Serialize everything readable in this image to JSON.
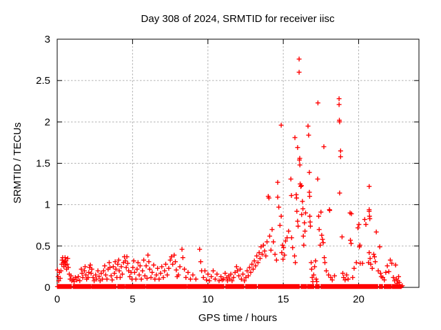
{
  "colors": {
    "marker": "#ff0000",
    "grid": "#b0b0b0",
    "frame": "#000000",
    "background": "#ffffff",
    "text": "#000000"
  },
  "chart_data": {
    "type": "scatter",
    "title": "Day 308 of 2024, SRMTID for receiver iisc",
    "xlabel": "GPS time / hours",
    "ylabel": "SRMTID / TECUs",
    "xlim": [
      0,
      24
    ],
    "ylim": [
      0,
      3
    ],
    "xticks": [
      0,
      5,
      10,
      15,
      20
    ],
    "xtick_labels": [
      "0",
      "5",
      "10",
      "15",
      "20"
    ],
    "yticks": [
      0,
      0.5,
      1,
      1.5,
      2,
      2.5,
      3
    ],
    "ytick_labels": [
      "0",
      "0.5",
      "1",
      "1.5",
      "2",
      "2.5",
      "3"
    ],
    "grid": true,
    "legend": "none",
    "marker": "plus",
    "series_name": "SRMTID",
    "baseline_band": {
      "y": 0.01,
      "t_start": 0.02,
      "t_end": 22.82,
      "step": 0.04,
      "gaps": [
        [
          0.98,
          1.04
        ],
        [
          2.24,
          2.3
        ],
        [
          3.92,
          4.0
        ],
        [
          4.48,
          4.54
        ],
        [
          5.84,
          5.9
        ],
        [
          8.6,
          8.64
        ],
        [
          11.08,
          11.14
        ],
        [
          12.4,
          12.46
        ],
        [
          13.24,
          13.3
        ],
        [
          16.08,
          16.14
        ],
        [
          16.54,
          16.6
        ],
        [
          17.02,
          17.12
        ],
        [
          17.4,
          17.46
        ],
        [
          21.28,
          21.34
        ],
        [
          21.6,
          21.66
        ],
        [
          22.14,
          22.2
        ]
      ]
    },
    "points": [
      [
        0.02,
        0.21
      ],
      [
        0.06,
        0.13
      ],
      [
        0.1,
        0.08
      ],
      [
        0.15,
        0.18
      ],
      [
        0.2,
        0.11
      ],
      [
        0.25,
        0.2
      ],
      [
        0.3,
        0.28
      ],
      [
        0.33,
        0.33
      ],
      [
        0.36,
        0.36
      ],
      [
        0.4,
        0.3
      ],
      [
        0.44,
        0.25
      ],
      [
        0.48,
        0.31
      ],
      [
        0.52,
        0.36
      ],
      [
        0.55,
        0.27
      ],
      [
        0.58,
        0.32
      ],
      [
        0.62,
        0.22
      ],
      [
        0.66,
        0.28
      ],
      [
        0.7,
        0.35
      ],
      [
        0.74,
        0.24
      ],
      [
        0.8,
        0.16
      ],
      [
        0.86,
        0.1
      ],
      [
        0.92,
        0.14
      ],
      [
        0.97,
        0.08
      ],
      [
        1.05,
        0.1
      ],
      [
        1.12,
        0.07
      ],
      [
        1.2,
        0.12
      ],
      [
        1.3,
        0.09
      ],
      [
        1.4,
        0.13
      ],
      [
        1.5,
        0.08
      ],
      [
        1.6,
        0.22
      ],
      [
        1.65,
        0.17
      ],
      [
        1.7,
        0.12
      ],
      [
        1.8,
        0.2
      ],
      [
        1.85,
        0.25
      ],
      [
        1.9,
        0.15
      ],
      [
        1.95,
        0.1
      ],
      [
        2.05,
        0.12
      ],
      [
        2.1,
        0.18
      ],
      [
        2.15,
        0.24
      ],
      [
        2.2,
        0.27
      ],
      [
        2.25,
        0.17
      ],
      [
        2.3,
        0.22
      ],
      [
        2.38,
        0.12
      ],
      [
        2.45,
        0.08
      ],
      [
        2.55,
        0.15
      ],
      [
        2.6,
        0.1
      ],
      [
        2.7,
        0.2
      ],
      [
        2.78,
        0.13
      ],
      [
        2.85,
        0.08
      ],
      [
        2.92,
        0.17
      ],
      [
        3.0,
        0.1
      ],
      [
        3.08,
        0.2
      ],
      [
        3.15,
        0.26
      ],
      [
        3.22,
        0.15
      ],
      [
        3.3,
        0.1
      ],
      [
        3.38,
        0.22
      ],
      [
        3.45,
        0.3
      ],
      [
        3.5,
        0.24
      ],
      [
        3.58,
        0.14
      ],
      [
        3.65,
        0.09
      ],
      [
        3.72,
        0.25
      ],
      [
        3.8,
        0.17
      ],
      [
        3.85,
        0.31
      ],
      [
        3.9,
        0.22
      ],
      [
        3.96,
        0.12
      ],
      [
        4.02,
        0.28
      ],
      [
        4.08,
        0.33
      ],
      [
        4.12,
        0.2
      ],
      [
        4.18,
        0.12
      ],
      [
        4.25,
        0.25
      ],
      [
        4.32,
        0.16
      ],
      [
        4.4,
        0.3
      ],
      [
        4.46,
        0.37
      ],
      [
        4.52,
        0.32
      ],
      [
        4.58,
        0.24
      ],
      [
        4.62,
        0.37
      ],
      [
        4.68,
        0.29
      ],
      [
        4.74,
        0.2
      ],
      [
        4.82,
        0.13
      ],
      [
        4.9,
        0.18
      ],
      [
        4.96,
        0.1
      ],
      [
        5.02,
        0.24
      ],
      [
        5.08,
        0.32
      ],
      [
        5.14,
        0.18
      ],
      [
        5.22,
        0.1
      ],
      [
        5.3,
        0.22
      ],
      [
        5.36,
        0.3
      ],
      [
        5.44,
        0.15
      ],
      [
        5.5,
        0.26
      ],
      [
        5.58,
        0.1
      ],
      [
        5.66,
        0.2
      ],
      [
        5.74,
        0.33
      ],
      [
        5.82,
        0.14
      ],
      [
        5.9,
        0.26
      ],
      [
        5.96,
        0.11
      ],
      [
        6.02,
        0.39
      ],
      [
        6.08,
        0.31
      ],
      [
        6.14,
        0.22
      ],
      [
        6.22,
        0.12
      ],
      [
        6.3,
        0.18
      ],
      [
        6.4,
        0.27
      ],
      [
        6.48,
        0.1
      ],
      [
        6.58,
        0.15
      ],
      [
        6.66,
        0.23
      ],
      [
        6.76,
        0.1
      ],
      [
        6.86,
        0.17
      ],
      [
        6.94,
        0.25
      ],
      [
        7.04,
        0.12
      ],
      [
        7.12,
        0.2
      ],
      [
        7.2,
        0.28
      ],
      [
        7.3,
        0.15
      ],
      [
        7.4,
        0.23
      ],
      [
        7.5,
        0.33
      ],
      [
        7.58,
        0.37
      ],
      [
        7.66,
        0.28
      ],
      [
        7.76,
        0.39
      ],
      [
        7.84,
        0.31
      ],
      [
        7.9,
        0.21
      ],
      [
        7.96,
        0.13
      ],
      [
        8.04,
        0.15
      ],
      [
        8.14,
        0.25
      ],
      [
        8.28,
        0.46
      ],
      [
        8.34,
        0.36
      ],
      [
        8.44,
        0.22
      ],
      [
        8.54,
        0.12
      ],
      [
        8.68,
        0.18
      ],
      [
        8.84,
        0.1
      ],
      [
        9.0,
        0.15
      ],
      [
        9.2,
        0.1
      ],
      [
        9.45,
        0.46
      ],
      [
        9.52,
        0.31
      ],
      [
        9.58,
        0.2
      ],
      [
        9.7,
        0.12
      ],
      [
        9.8,
        0.2
      ],
      [
        9.9,
        0.09
      ],
      [
        10.0,
        0.16
      ],
      [
        10.1,
        0.08
      ],
      [
        10.22,
        0.13
      ],
      [
        10.35,
        0.2
      ],
      [
        10.48,
        0.1
      ],
      [
        10.6,
        0.16
      ],
      [
        10.74,
        0.08
      ],
      [
        10.86,
        0.13
      ],
      [
        10.95,
        0.09
      ],
      [
        11.04,
        0.1
      ],
      [
        11.14,
        0.17
      ],
      [
        11.25,
        0.12
      ],
      [
        11.3,
        0.08
      ],
      [
        11.38,
        0.14
      ],
      [
        11.45,
        0.1
      ],
      [
        11.52,
        0.16
      ],
      [
        11.6,
        0.08
      ],
      [
        11.7,
        0.12
      ],
      [
        11.8,
        0.18
      ],
      [
        11.9,
        0.25
      ],
      [
        11.96,
        0.2
      ],
      [
        12.05,
        0.14
      ],
      [
        12.14,
        0.22
      ],
      [
        12.22,
        0.1
      ],
      [
        12.32,
        0.16
      ],
      [
        12.42,
        0.08
      ],
      [
        12.52,
        0.12
      ],
      [
        12.6,
        0.2
      ],
      [
        12.68,
        0.14
      ],
      [
        12.76,
        0.24
      ],
      [
        12.84,
        0.18
      ],
      [
        12.92,
        0.28
      ],
      [
        13.0,
        0.22
      ],
      [
        13.08,
        0.32
      ],
      [
        13.16,
        0.26
      ],
      [
        13.24,
        0.38
      ],
      [
        13.32,
        0.3
      ],
      [
        13.4,
        0.42
      ],
      [
        13.46,
        0.35
      ],
      [
        13.52,
        0.49
      ],
      [
        13.6,
        0.4
      ],
      [
        13.68,
        0.51
      ],
      [
        13.76,
        0.44
      ],
      [
        13.84,
        0.38
      ],
      [
        13.92,
        0.55
      ],
      [
        14.0,
        1.1
      ],
      [
        14.05,
        1.08
      ],
      [
        14.1,
        0.62
      ],
      [
        14.18,
        0.45
      ],
      [
        14.26,
        0.7
      ],
      [
        14.34,
        0.55
      ],
      [
        14.45,
        0.4
      ],
      [
        14.55,
        0.33
      ],
      [
        14.63,
        1.27
      ],
      [
        14.63,
        1.09
      ],
      [
        14.7,
        0.97
      ],
      [
        14.78,
        0.75
      ],
      [
        14.86,
        1.96
      ],
      [
        14.86,
        0.86
      ],
      [
        14.9,
        0.42
      ],
      [
        14.95,
        0.51
      ],
      [
        14.98,
        0.34
      ],
      [
        15.02,
        0.48
      ],
      [
        15.08,
        0.39
      ],
      [
        15.15,
        0.56
      ],
      [
        15.25,
        0.6
      ],
      [
        15.35,
        0.68
      ],
      [
        15.5,
        1.31
      ],
      [
        15.54,
        1.11
      ],
      [
        15.55,
        0.6
      ],
      [
        15.62,
        0.48
      ],
      [
        15.77,
        1.81
      ],
      [
        15.75,
        0.38
      ],
      [
        15.8,
        0.3
      ],
      [
        15.86,
        1.12
      ],
      [
        15.88,
        1.08
      ],
      [
        15.9,
        0.92
      ],
      [
        15.95,
        1.69
      ],
      [
        15.95,
        0.8
      ],
      [
        15.98,
        0.74
      ],
      [
        16.05,
        2.76
      ],
      [
        16.05,
        2.6
      ],
      [
        16.09,
        1.56
      ],
      [
        16.07,
        1.54
      ],
      [
        16.1,
        1.48
      ],
      [
        16.12,
        1.25
      ],
      [
        16.16,
        1.22
      ],
      [
        16.2,
        1.23
      ],
      [
        16.22,
        0.88
      ],
      [
        16.27,
        1.04
      ],
      [
        16.3,
        0.95
      ],
      [
        16.33,
        0.62
      ],
      [
        16.36,
        0.51
      ],
      [
        16.4,
        0.78
      ],
      [
        16.44,
        0.68
      ],
      [
        16.48,
        0.9
      ],
      [
        16.64,
        1.95
      ],
      [
        16.68,
        1.84
      ],
      [
        16.73,
        1.39
      ],
      [
        16.73,
        1.15
      ],
      [
        16.75,
        1.1
      ],
      [
        16.76,
        0.86
      ],
      [
        16.78,
        0.79
      ],
      [
        16.8,
        0.74
      ],
      [
        16.85,
        0.3
      ],
      [
        16.88,
        0.22
      ],
      [
        16.92,
        0.12
      ],
      [
        16.96,
        0.07
      ],
      [
        17.02,
        0.15
      ],
      [
        17.08,
        0.25
      ],
      [
        17.14,
        0.32
      ],
      [
        17.18,
        0.1
      ],
      [
        17.22,
        0.07
      ],
      [
        17.3,
        2.23
      ],
      [
        17.28,
        1.31
      ],
      [
        17.35,
        0.86
      ],
      [
        17.38,
        0.7
      ],
      [
        17.45,
        0.51
      ],
      [
        17.5,
        0.91
      ],
      [
        17.55,
        0.63
      ],
      [
        17.6,
        0.58
      ],
      [
        17.65,
        0.54
      ],
      [
        17.69,
        1.7
      ],
      [
        17.72,
        0.36
      ],
      [
        17.76,
        0.3
      ],
      [
        17.85,
        0.2
      ],
      [
        18.0,
        0.15
      ],
      [
        18.06,
        0.94
      ],
      [
        18.08,
        0.93
      ],
      [
        18.15,
        0.12
      ],
      [
        18.25,
        0.09
      ],
      [
        18.4,
        0.14
      ],
      [
        18.7,
        2.28
      ],
      [
        18.7,
        2.21
      ],
      [
        18.72,
        2.02
      ],
      [
        18.74,
        2.0
      ],
      [
        18.8,
        1.65
      ],
      [
        18.8,
        1.58
      ],
      [
        18.74,
        1.14
      ],
      [
        18.9,
        0.61
      ],
      [
        18.95,
        0.17
      ],
      [
        19.0,
        0.12
      ],
      [
        19.1,
        0.09
      ],
      [
        19.2,
        0.15
      ],
      [
        19.3,
        0.1
      ],
      [
        19.43,
        0.9
      ],
      [
        19.45,
        0.57
      ],
      [
        19.5,
        0.53
      ],
      [
        19.52,
        0.89
      ],
      [
        19.6,
        0.12
      ],
      [
        19.7,
        0.23
      ],
      [
        19.85,
        0.3
      ],
      [
        19.95,
        0.72
      ],
      [
        20.02,
        0.76
      ],
      [
        20.05,
        0.49
      ],
      [
        20.08,
        0.51
      ],
      [
        20.1,
        0.29
      ],
      [
        20.25,
        0.29
      ],
      [
        20.4,
        0.82
      ],
      [
        20.48,
        0.76
      ],
      [
        20.65,
        0.3
      ],
      [
        20.7,
        1.22
      ],
      [
        20.7,
        0.94
      ],
      [
        20.7,
        0.92
      ],
      [
        20.72,
        0.86
      ],
      [
        20.74,
        0.83
      ],
      [
        20.7,
        0.42
      ],
      [
        20.76,
        0.35
      ],
      [
        20.8,
        0.28
      ],
      [
        20.9,
        0.23
      ],
      [
        21.0,
        0.4
      ],
      [
        21.05,
        0.37
      ],
      [
        21.17,
        0.67
      ],
      [
        21.1,
        0.31
      ],
      [
        21.3,
        0.2
      ],
      [
        21.4,
        0.49
      ],
      [
        21.45,
        0.17
      ],
      [
        21.5,
        0.13
      ],
      [
        21.6,
        0.12
      ],
      [
        21.7,
        0.09
      ],
      [
        21.8,
        0.18
      ],
      [
        21.9,
        0.26
      ],
      [
        22.0,
        0.19
      ],
      [
        22.1,
        0.33
      ],
      [
        22.2,
        0.29
      ],
      [
        22.3,
        0.12
      ],
      [
        22.38,
        0.08
      ],
      [
        22.45,
        0.27
      ],
      [
        22.5,
        0.1
      ],
      [
        22.55,
        0.05
      ],
      [
        22.6,
        0.08
      ],
      [
        22.65,
        0.13
      ],
      [
        22.7,
        0.06
      ],
      [
        22.9,
        0.02
      ]
    ]
  }
}
